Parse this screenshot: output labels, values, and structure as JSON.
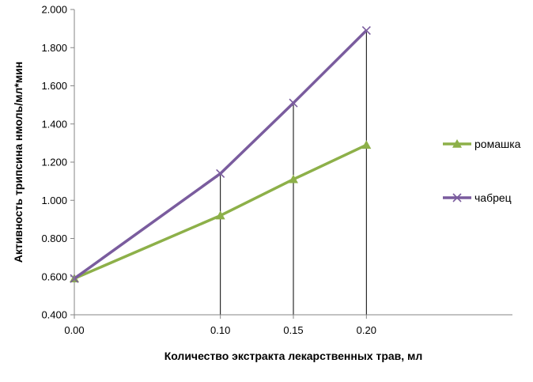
{
  "chart_data": {
    "type": "line",
    "xlabel": "Количество экстракта лекарственных трав, мл",
    "ylabel": "Активность трипсина нмоль/мл*мин",
    "x": [
      0.0,
      0.1,
      0.15,
      0.2
    ],
    "x_tick_labels": [
      "0.00",
      "0.10",
      "0.15",
      "0.20"
    ],
    "xlim": [
      0.0,
      0.3
    ],
    "ylim": [
      0.4,
      2.0
    ],
    "y_ticks": [
      0.4,
      0.6,
      0.8,
      1.0,
      1.2,
      1.4,
      1.6,
      1.8,
      2.0
    ],
    "y_tick_labels": [
      "0.400",
      "0.600",
      "0.800",
      "1.000",
      "1.200",
      "1.400",
      "1.600",
      "1.800",
      "2.000"
    ],
    "grid": false,
    "drop_lines": true,
    "legend_position": "right",
    "series": [
      {
        "name": "ромашка",
        "values": [
          0.59,
          0.92,
          1.11,
          1.29
        ],
        "color": "#8db049",
        "marker": "triangle"
      },
      {
        "name": "чабрец",
        "values": [
          0.59,
          1.14,
          1.51,
          1.89
        ],
        "color": "#7a5c9e",
        "marker": "x"
      }
    ]
  }
}
